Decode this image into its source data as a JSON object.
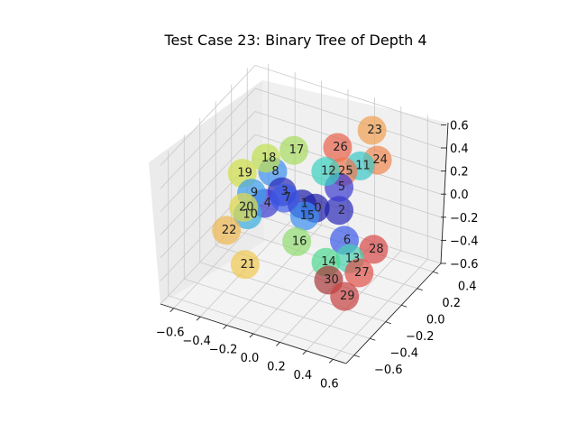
{
  "chart_data": {
    "type": "scatter",
    "title": "Test Case 23: Binary Tree of Depth 4",
    "projection": "3d",
    "grid": true,
    "xlim": [
      -0.7,
      0.7
    ],
    "ylim": [
      -0.7,
      0.5
    ],
    "zlim": [
      -0.6,
      0.65
    ],
    "x_ticks": [
      "−0.6",
      "−0.4",
      "−0.2",
      "0.0",
      "0.2",
      "0.4",
      "0.6"
    ],
    "y_ticks": [
      "−0.6",
      "−0.4",
      "−0.2",
      "0.0",
      "0.2",
      "0.4"
    ],
    "z_ticks": [
      "−0.6",
      "−0.4",
      "−0.2",
      "0.0",
      "0.2",
      "0.4",
      "0.6"
    ],
    "x_tick_values": [
      -0.6,
      -0.4,
      -0.2,
      0.0,
      0.2,
      0.4,
      0.6
    ],
    "y_tick_values": [
      -0.6,
      -0.4,
      -0.2,
      0.0,
      0.2,
      0.4
    ],
    "z_tick_values": [
      -0.6,
      -0.4,
      -0.2,
      0.0,
      0.2,
      0.4,
      0.6
    ],
    "points": [
      {
        "label": "0",
        "x": 0.05,
        "y": 0.0,
        "z": 0.0,
        "color": "#1c1ca8"
      },
      {
        "label": "1",
        "x": -0.05,
        "y": 0.0,
        "z": 0.0,
        "color": "#1c1ca8"
      },
      {
        "label": "2",
        "x": 0.2,
        "y": 0.05,
        "z": 0.0,
        "color": "#2a2ab8"
      },
      {
        "label": "3",
        "x": -0.2,
        "y": 0.0,
        "z": 0.05,
        "color": "#2a2ab8"
      },
      {
        "label": "4",
        "x": -0.3,
        "y": -0.05,
        "z": -0.05,
        "color": "#3a3ad0"
      },
      {
        "label": "5",
        "x": 0.2,
        "y": 0.05,
        "z": 0.2,
        "color": "#3a3ad0"
      },
      {
        "label": "6",
        "x": 0.3,
        "y": -0.05,
        "z": -0.15,
        "color": "#3a5ae8"
      },
      {
        "label": "7",
        "x": -0.15,
        "y": -0.05,
        "z": 0.05,
        "color": "#3a5ae8"
      },
      {
        "label": "8",
        "x": -0.3,
        "y": 0.05,
        "z": 0.15,
        "color": "#3a8ef0"
      },
      {
        "label": "9",
        "x": -0.4,
        "y": -0.05,
        "z": 0.0,
        "color": "#3a9ef0"
      },
      {
        "label": "10",
        "x": -0.4,
        "y": -0.1,
        "z": -0.15,
        "color": "#3aaee0"
      },
      {
        "label": "11",
        "x": 0.3,
        "y": 0.15,
        "z": 0.35,
        "color": "#3ac8c8"
      },
      {
        "label": "12",
        "x": 0.1,
        "y": 0.05,
        "z": 0.3,
        "color": "#3ad0c0"
      },
      {
        "label": "13",
        "x": 0.4,
        "y": -0.15,
        "z": -0.2,
        "color": "#48d0b0"
      },
      {
        "label": "14",
        "x": 0.25,
        "y": -0.2,
        "z": -0.25,
        "color": "#50d890"
      },
      {
        "label": "15",
        "x": 0.0,
        "y": -0.05,
        "z": -0.05,
        "color": "#3a8ef0"
      },
      {
        "label": "16",
        "x": 0.0,
        "y": -0.15,
        "z": -0.2,
        "color": "#90dc70"
      },
      {
        "label": "17",
        "x": -0.2,
        "y": 0.15,
        "z": 0.3,
        "color": "#a8dc60"
      },
      {
        "label": "18",
        "x": -0.35,
        "y": 0.05,
        "z": 0.25,
        "color": "#c0e050"
      },
      {
        "label": "19",
        "x": -0.5,
        "y": 0.0,
        "z": 0.1,
        "color": "#d0e048"
      },
      {
        "label": "20",
        "x": -0.4,
        "y": -0.15,
        "z": -0.05,
        "color": "#e0d848"
      },
      {
        "label": "21",
        "x": -0.3,
        "y": -0.3,
        "z": -0.4,
        "color": "#f0c850"
      },
      {
        "label": "22",
        "x": -0.5,
        "y": -0.2,
        "z": -0.25,
        "color": "#f0b850"
      },
      {
        "label": "23",
        "x": 0.3,
        "y": 0.3,
        "z": 0.55,
        "color": "#f0a050"
      },
      {
        "label": "24",
        "x": 0.4,
        "y": 0.2,
        "z": 0.4,
        "color": "#f08850"
      },
      {
        "label": "25",
        "x": 0.2,
        "y": 0.1,
        "z": 0.3,
        "color": "#f07850"
      },
      {
        "label": "26",
        "x": 0.1,
        "y": 0.2,
        "z": 0.4,
        "color": "#e86048"
      },
      {
        "label": "27",
        "x": 0.5,
        "y": -0.2,
        "z": -0.25,
        "color": "#e05048"
      },
      {
        "label": "28",
        "x": 0.55,
        "y": -0.1,
        "z": -0.1,
        "color": "#d84848"
      },
      {
        "label": "29",
        "x": 0.45,
        "y": -0.3,
        "z": -0.4,
        "color": "#c84040"
      },
      {
        "label": "30",
        "x": 0.3,
        "y": -0.25,
        "z": -0.35,
        "color": "#a83838"
      }
    ]
  }
}
